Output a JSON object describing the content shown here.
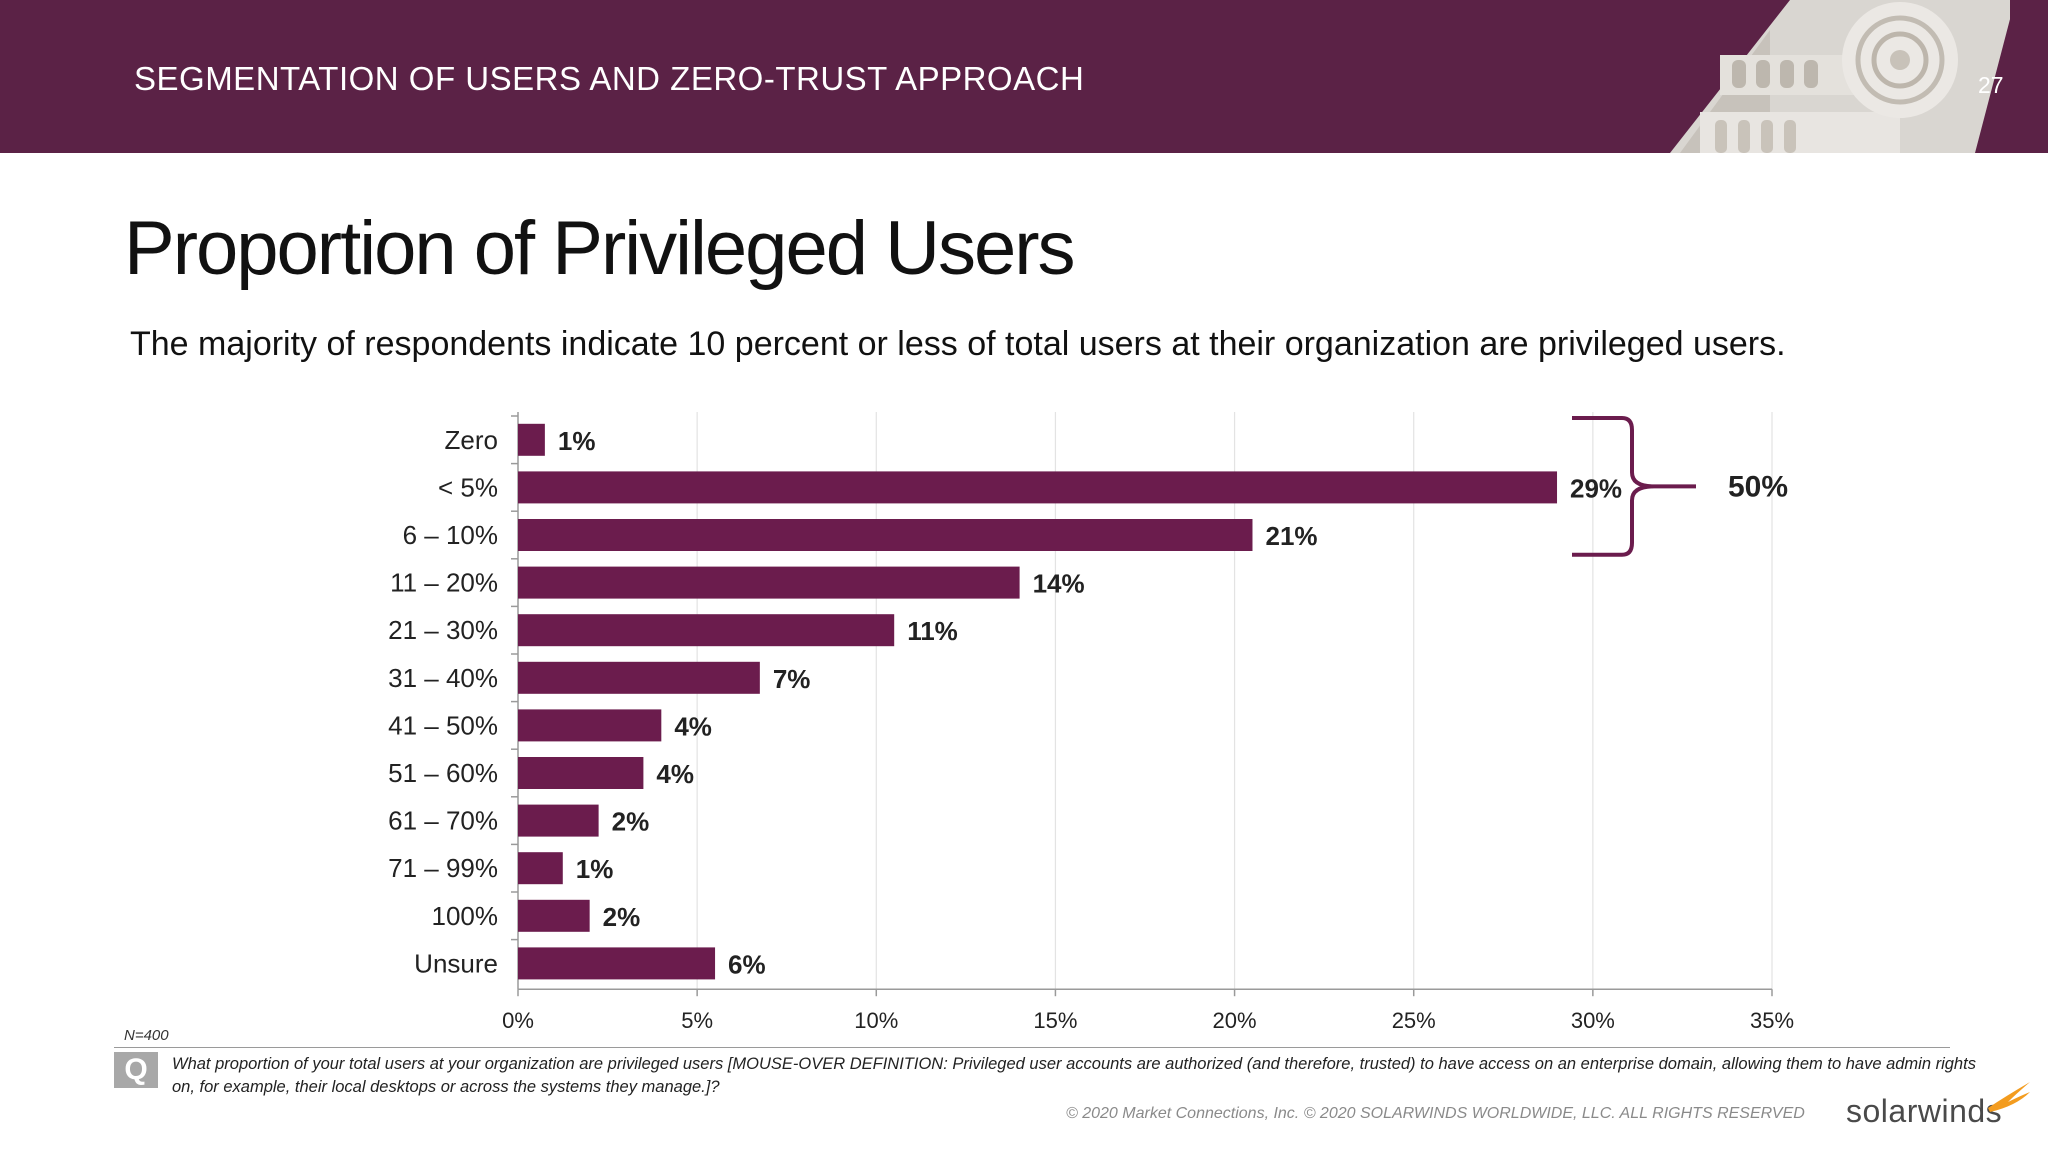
{
  "header": {
    "section_title": "SEGMENTATION OF USERS AND ZERO-TRUST APPROACH",
    "page_number": "27"
  },
  "slide": {
    "title": "Proportion of Privileged Users",
    "subtitle": "The majority of respondents indicate 10 percent or less of total users at their organization are privileged users."
  },
  "chart_data": {
    "type": "bar",
    "orientation": "horizontal",
    "categories": [
      "Zero",
      "< 5%",
      "6 – 10%",
      "11 – 20%",
      "21 – 30%",
      "31 – 40%",
      "41 – 50%",
      "51 – 60%",
      "61 – 70%",
      "71 – 99%",
      "100%",
      "Unsure"
    ],
    "values": [
      0.75,
      29,
      20.5,
      14,
      10.5,
      6.75,
      4,
      3.5,
      2.25,
      1.25,
      2,
      5.5
    ],
    "data_labels": [
      "1%",
      "29%",
      "21%",
      "14%",
      "11%",
      "7%",
      "4%",
      "4%",
      "2%",
      "1%",
      "2%",
      "6%"
    ],
    "x_ticks": [
      "0%",
      "5%",
      "10%",
      "15%",
      "20%",
      "25%",
      "30%",
      "35%"
    ],
    "xlim": [
      0,
      35
    ],
    "grid": true,
    "bar_color": "#6b1c4d",
    "bracket": {
      "from_category": "< 5%",
      "to_category": "6 – 10%",
      "label": "50%"
    }
  },
  "footer": {
    "n_label": "N=400",
    "q_icon": "Q",
    "question": "What proportion of your total users at your organization are privileged users [MOUSE-OVER DEFINITION: Privileged user accounts are authorized (and therefore, trusted) to have access on an enterprise domain, allowing them to have admin rights on, for example, their local desktops or across the systems they manage.]?",
    "copyright": "© 2020 Market Connections, Inc. © 2020 SOLARWINDS WORLDWIDE, LLC. ALL RIGHTS RESERVED",
    "logo": "solarwinds"
  },
  "colors": {
    "banner": "#5b2246",
    "accent": "#6b1c4d",
    "logo_flame": "#f39c1f"
  }
}
